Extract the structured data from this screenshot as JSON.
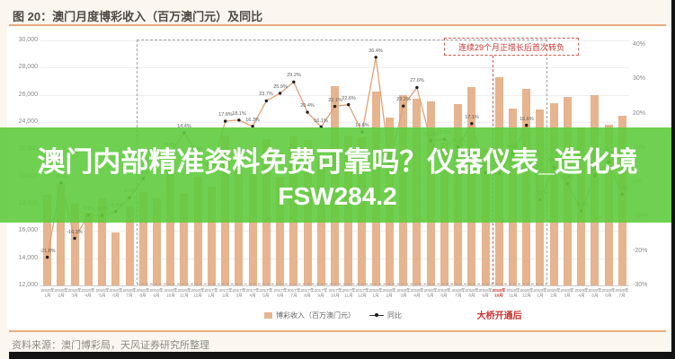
{
  "figure": {
    "title": "图 20：澳门月度博彩收入（百万澳门元）及同比",
    "source": "资料来源：澳门博彩局，天风证券研究所整理"
  },
  "overlay": {
    "line1": "澳门内部精准资料免费可靠吗？仪器仪表_造化境",
    "line2": "FSW284.2",
    "bg_color": "#5fcb3e",
    "text_color": "#ffffff"
  },
  "annotations": {
    "streak_note": "连续29个月正增长后首次转负",
    "bridge_note": "大桥开通后",
    "streak_span": [
      "2016年8月",
      "2019年1月"
    ],
    "bridge_month": "2018年10月",
    "red_color": "#c9302c"
  },
  "colors": {
    "bar": "#e6b48e",
    "line": "#e2a078",
    "marker": "#1f1f1f",
    "grid": "#ededed",
    "accent_rule": "#e9ad83",
    "background": "#fbf6ee"
  },
  "chart_data": {
    "type": "bar",
    "subtype": "bar+line dual axis",
    "title": "澳门月度博彩收入（百万澳门元）及同比",
    "categories": [
      "2016年1月",
      "2016年2月",
      "2016年3月",
      "2016年4月",
      "2016年5月",
      "2016年6月",
      "2016年7月",
      "2016年8月",
      "2016年9月",
      "2016年10月",
      "2016年11月",
      "2016年12月",
      "2017年1月",
      "2017年2月",
      "2017年3月",
      "2017年4月",
      "2017年5月",
      "2017年6月",
      "2017年7月",
      "2017年8月",
      "2017年9月",
      "2017年10月",
      "2017年11月",
      "2017年12月",
      "2018年1月",
      "2018年2月",
      "2018年3月",
      "2018年4月",
      "2018年5月",
      "2018年6月",
      "2018年7月",
      "2018年8月",
      "2018年9月",
      "2018年10月",
      "2018年11月",
      "2018年12月",
      "2019年1月",
      "2019年2月",
      "2019年3月",
      "2019年4月",
      "2019年5月",
      "2019年6月",
      "2019年7月"
    ],
    "series": [
      {
        "name": "博彩收入（百万澳门元）",
        "type": "bar",
        "axis": "left",
        "values": [
          18674,
          19518,
          17980,
          17340,
          18389,
          15877,
          17770,
          18837,
          18405,
          21807,
          18786,
          19976,
          19255,
          22993,
          21233,
          20164,
          22744,
          19992,
          22965,
          22676,
          21368,
          26631,
          23038,
          22896,
          26265,
          24312,
          25952,
          25727,
          25488,
          22492,
          25327,
          26559,
          21952,
          27328,
          24995,
          26468,
          24942,
          25370,
          25840,
          23588,
          25952,
          23812,
          24453
        ]
      },
      {
        "name": "同比",
        "type": "line",
        "axis": "right",
        "values": [
          -21.8,
          -0.1,
          -16.3,
          -9.5,
          -9.6,
          -8.5,
          -4.5,
          1.1,
          7.4,
          8.8,
          14.4,
          8.0,
          3.1,
          17.8,
          18.1,
          16.3,
          23.7,
          25.9,
          29.2,
          20.4,
          16.1,
          22.1,
          22.6,
          14.6,
          36.4,
          5.7,
          22.2,
          27.6,
          12.1,
          12.5,
          10.3,
          17.1,
          2.8,
          2.6,
          8.5,
          16.6,
          -5.0,
          4.4,
          -0.4,
          -8.3,
          1.8,
          5.9,
          -3.5
        ]
      }
    ],
    "left_axis": {
      "min": 12000,
      "max": 30000,
      "step": 2000,
      "ticks": [
        "30,000",
        "28,000",
        "26,000",
        "24,000",
        "22,000",
        "20,000",
        "18,000",
        "16,000",
        "14,000",
        "12,000"
      ]
    },
    "right_axis": {
      "min": -30,
      "max": 40,
      "step": 10,
      "ticks": [
        "40%",
        "30%",
        "20%",
        "10%",
        "0%",
        "-10%",
        "-20%",
        "-30%"
      ]
    },
    "grid": true,
    "legend_position": "bottom-center",
    "data_labels": "percent on line points"
  }
}
